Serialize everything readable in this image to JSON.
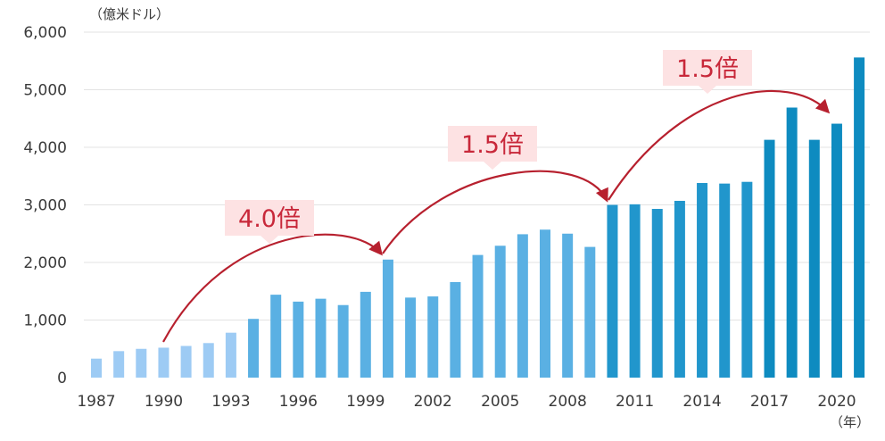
{
  "chart_data": {
    "type": "bar",
    "title": "",
    "xlabel": "（年）",
    "ylabel": "（億米ドル）",
    "ylim": [
      0,
      6000
    ],
    "yticks": [
      0,
      1000,
      2000,
      3000,
      4000,
      5000,
      6000
    ],
    "ytick_labels": [
      "0",
      "1,000",
      "2,000",
      "3,000",
      "4,000",
      "5,000",
      "6,000"
    ],
    "xtick_labels": [
      "1987",
      "1990",
      "1993",
      "1996",
      "1999",
      "2002",
      "2005",
      "2008",
      "2011",
      "2014",
      "2017",
      "2020"
    ],
    "categories": [
      "1987",
      "1988",
      "1989",
      "1990",
      "1991",
      "1992",
      "1993",
      "1994",
      "1995",
      "1996",
      "1997",
      "1998",
      "1999",
      "2000",
      "2001",
      "2002",
      "2003",
      "2004",
      "2005",
      "2006",
      "2007",
      "2008",
      "2009",
      "2010",
      "2011",
      "2012",
      "2013",
      "2014",
      "2015",
      "2016",
      "2017",
      "2018",
      "2019",
      "2020",
      "2021"
    ],
    "values": [
      330,
      460,
      500,
      520,
      550,
      600,
      780,
      1020,
      1440,
      1320,
      1370,
      1260,
      1490,
      2050,
      1390,
      1410,
      1660,
      2130,
      2290,
      2490,
      2570,
      2500,
      2270,
      3000,
      3010,
      2930,
      3070,
      3380,
      3370,
      3400,
      4130,
      4690,
      4130,
      4410,
      5560
    ],
    "grid": true,
    "colors": {
      "era1": "#9dcbf4",
      "era2": "#5ab0e3",
      "era3": "#2196cc",
      "era4": "#0e8bc0",
      "arrow": "#b7202e",
      "callout_bg": "#fde2e3",
      "callout_text": "#c8283a",
      "grid": "#e3e3e3"
    },
    "annotations": [
      {
        "label": "4.0倍",
        "from": "1990",
        "to": "2000"
      },
      {
        "label": "1.5倍",
        "from": "2000",
        "to": "2010"
      },
      {
        "label": "1.5倍",
        "from": "2010",
        "to": "2020"
      }
    ]
  }
}
